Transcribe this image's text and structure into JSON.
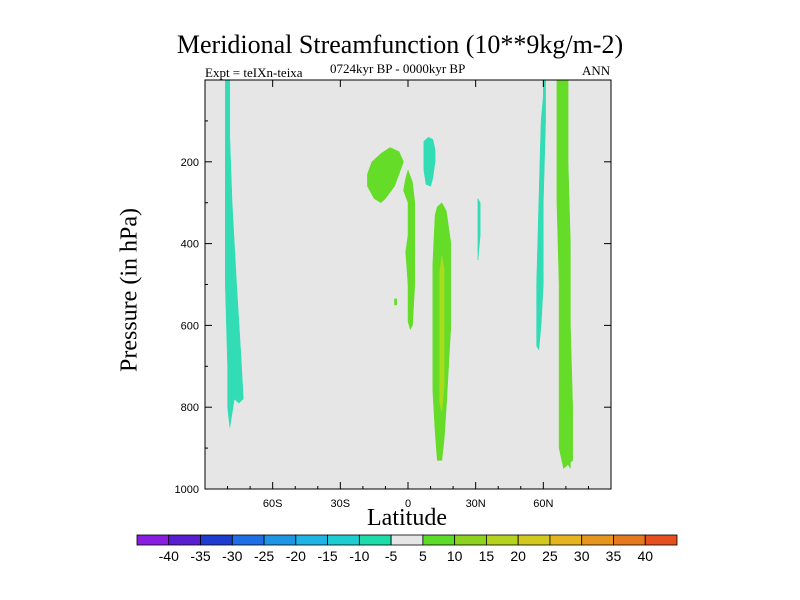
{
  "chart_data": {
    "type": "contour",
    "title": "Meridional Streamfunction (10**9kg/m-2)",
    "subtitle_left": "Expt = teIXn-teixa",
    "subtitle_center": "0724kyr BP - 0000kyr BP",
    "subtitle_right": "ANN",
    "xlabel": "Latitude",
    "ylabel": "Pressure (in hPa)",
    "xlim": [
      -90,
      90
    ],
    "ylim": [
      1000,
      0
    ],
    "x_ticks": [
      {
        "value": -60,
        "label": "60S"
      },
      {
        "value": -30,
        "label": "30S"
      },
      {
        "value": 0,
        "label": "0"
      },
      {
        "value": 30,
        "label": "30N"
      },
      {
        "value": 60,
        "label": "60N"
      }
    ],
    "y_ticks": [
      {
        "value": 200,
        "label": "200"
      },
      {
        "value": 400,
        "label": "400"
      },
      {
        "value": 600,
        "label": "600"
      },
      {
        "value": 800,
        "label": "800"
      },
      {
        "value": 1000,
        "label": "1000"
      }
    ],
    "background_color": "#e6e6e6",
    "colorbar": {
      "labels": [
        "-40",
        "-35",
        "-30",
        "-25",
        "-20",
        "-15",
        "-10",
        "-5",
        "5",
        "10",
        "15",
        "20",
        "25",
        "30",
        "35",
        "40"
      ],
      "colors": [
        "#8a1ee0",
        "#5a1ed2",
        "#1e3cd2",
        "#1e6ee6",
        "#1e96e6",
        "#1eb4e6",
        "#1ecdd2",
        "#1edcaa",
        "#e6e6e6",
        "#5adc28",
        "#8cd21e",
        "#b4d21e",
        "#d2c81e",
        "#e6b41e",
        "#e6961e",
        "#e6781e",
        "#e6501e"
      ]
    },
    "regions": [
      {
        "name": "sh-polar-cell",
        "level": "-5 to -10",
        "color": "#32dcb4",
        "points": [
          [
            -81,
            0
          ],
          [
            -79,
            0
          ],
          [
            -79,
            140
          ],
          [
            -78,
            300
          ],
          [
            -76,
            500
          ],
          [
            -74,
            680
          ],
          [
            -73,
            780
          ],
          [
            -75,
            790
          ],
          [
            -77,
            780
          ],
          [
            -79,
            850
          ],
          [
            -80,
            800
          ],
          [
            -80,
            700
          ],
          [
            -81,
            500
          ],
          [
            -81,
            300
          ],
          [
            -81,
            100
          ]
        ]
      },
      {
        "name": "sh-upper-cell",
        "level": "5 to 10",
        "color": "#64dc28",
        "points": [
          [
            -18,
            230
          ],
          [
            -16,
            200
          ],
          [
            -12,
            180
          ],
          [
            -8,
            165
          ],
          [
            -4,
            175
          ],
          [
            -2,
            200
          ],
          [
            -4,
            230
          ],
          [
            -6,
            260
          ],
          [
            -10,
            290
          ],
          [
            -12,
            300
          ],
          [
            -15,
            290
          ],
          [
            -18,
            260
          ]
        ]
      },
      {
        "name": "upper-tropical-neg",
        "level": "-5 to -10",
        "color": "#32dcb4",
        "points": [
          [
            7,
            150
          ],
          [
            9,
            140
          ],
          [
            11,
            145
          ],
          [
            12,
            170
          ],
          [
            12,
            200
          ],
          [
            11,
            240
          ],
          [
            10,
            260
          ],
          [
            8,
            255
          ],
          [
            7,
            220
          ],
          [
            7,
            190
          ]
        ]
      },
      {
        "name": "equatorial-strip",
        "level": "5 to 10",
        "color": "#64dc28",
        "points": [
          [
            -2,
            270
          ],
          [
            -1,
            240
          ],
          [
            0,
            220
          ],
          [
            2,
            250
          ],
          [
            3,
            300
          ],
          [
            3,
            400
          ],
          [
            3,
            500
          ],
          [
            2,
            600
          ],
          [
            1,
            610
          ],
          [
            0,
            590
          ],
          [
            0,
            500
          ],
          [
            -1,
            420
          ],
          [
            0,
            380
          ],
          [
            0,
            300
          ]
        ]
      },
      {
        "name": "nh-hadley-cell",
        "level": "5 to 10",
        "color": "#64dc28",
        "points": [
          [
            12,
            330
          ],
          [
            13,
            310
          ],
          [
            15,
            300
          ],
          [
            17,
            320
          ],
          [
            19,
            400
          ],
          [
            19,
            500
          ],
          [
            19,
            600
          ],
          [
            18,
            700
          ],
          [
            17,
            800
          ],
          [
            16,
            880
          ],
          [
            15,
            930
          ],
          [
            13,
            930
          ],
          [
            12,
            860
          ],
          [
            11,
            760
          ],
          [
            11,
            650
          ],
          [
            11,
            550
          ],
          [
            11,
            450
          ]
        ]
      },
      {
        "name": "nh-hadley-core",
        "level": "10 to 15",
        "color": "#aadc1e",
        "points": [
          [
            14,
            470
          ],
          [
            15,
            430
          ],
          [
            16,
            460
          ],
          [
            16,
            550
          ],
          [
            16,
            650
          ],
          [
            16,
            750
          ],
          [
            15,
            810
          ],
          [
            14,
            790
          ],
          [
            14,
            650
          ],
          [
            14,
            550
          ]
        ]
      },
      {
        "name": "nh-upper-neg",
        "level": "-5 to -10",
        "color": "#32dcb4",
        "points": [
          [
            31,
            290
          ],
          [
            32,
            300
          ],
          [
            32,
            380
          ],
          [
            31,
            440
          ],
          [
            31,
            350
          ]
        ]
      },
      {
        "name": "nh-polar-neg",
        "level": "-5 to -10",
        "color": "#32dcb4",
        "points": [
          [
            60,
            0
          ],
          [
            61,
            0
          ],
          [
            61,
            40
          ],
          [
            61,
            100
          ],
          [
            60,
            300
          ],
          [
            60,
            500
          ],
          [
            59,
            600
          ],
          [
            58,
            660
          ],
          [
            57,
            650
          ],
          [
            57,
            500
          ],
          [
            58,
            300
          ],
          [
            59,
            100
          ],
          [
            60,
            40
          ]
        ]
      },
      {
        "name": "nh-polar-pos",
        "level": "5 to 10",
        "color": "#64dc28",
        "points": [
          [
            66,
            0
          ],
          [
            71,
            0
          ],
          [
            71,
            200
          ],
          [
            72,
            400
          ],
          [
            72,
            600
          ],
          [
            73,
            800
          ],
          [
            73,
            930
          ],
          [
            71,
            940
          ],
          [
            69,
            950
          ],
          [
            67,
            900
          ],
          [
            67,
            700
          ],
          [
            67,
            500
          ],
          [
            66,
            300
          ],
          [
            66,
            100
          ]
        ]
      },
      {
        "name": "nh-polar-tip",
        "level": "5 to 10",
        "color": "#64dc28",
        "points": [
          [
            71,
            930
          ],
          [
            72,
            920
          ],
          [
            72,
            950
          ],
          [
            71,
            940
          ]
        ]
      },
      {
        "name": "eq-dot",
        "level": "5 to 10",
        "color": "#64dc28",
        "points": [
          [
            -6,
            535
          ],
          [
            -5,
            535
          ],
          [
            -5,
            550
          ],
          [
            -6,
            550
          ]
        ]
      }
    ]
  }
}
